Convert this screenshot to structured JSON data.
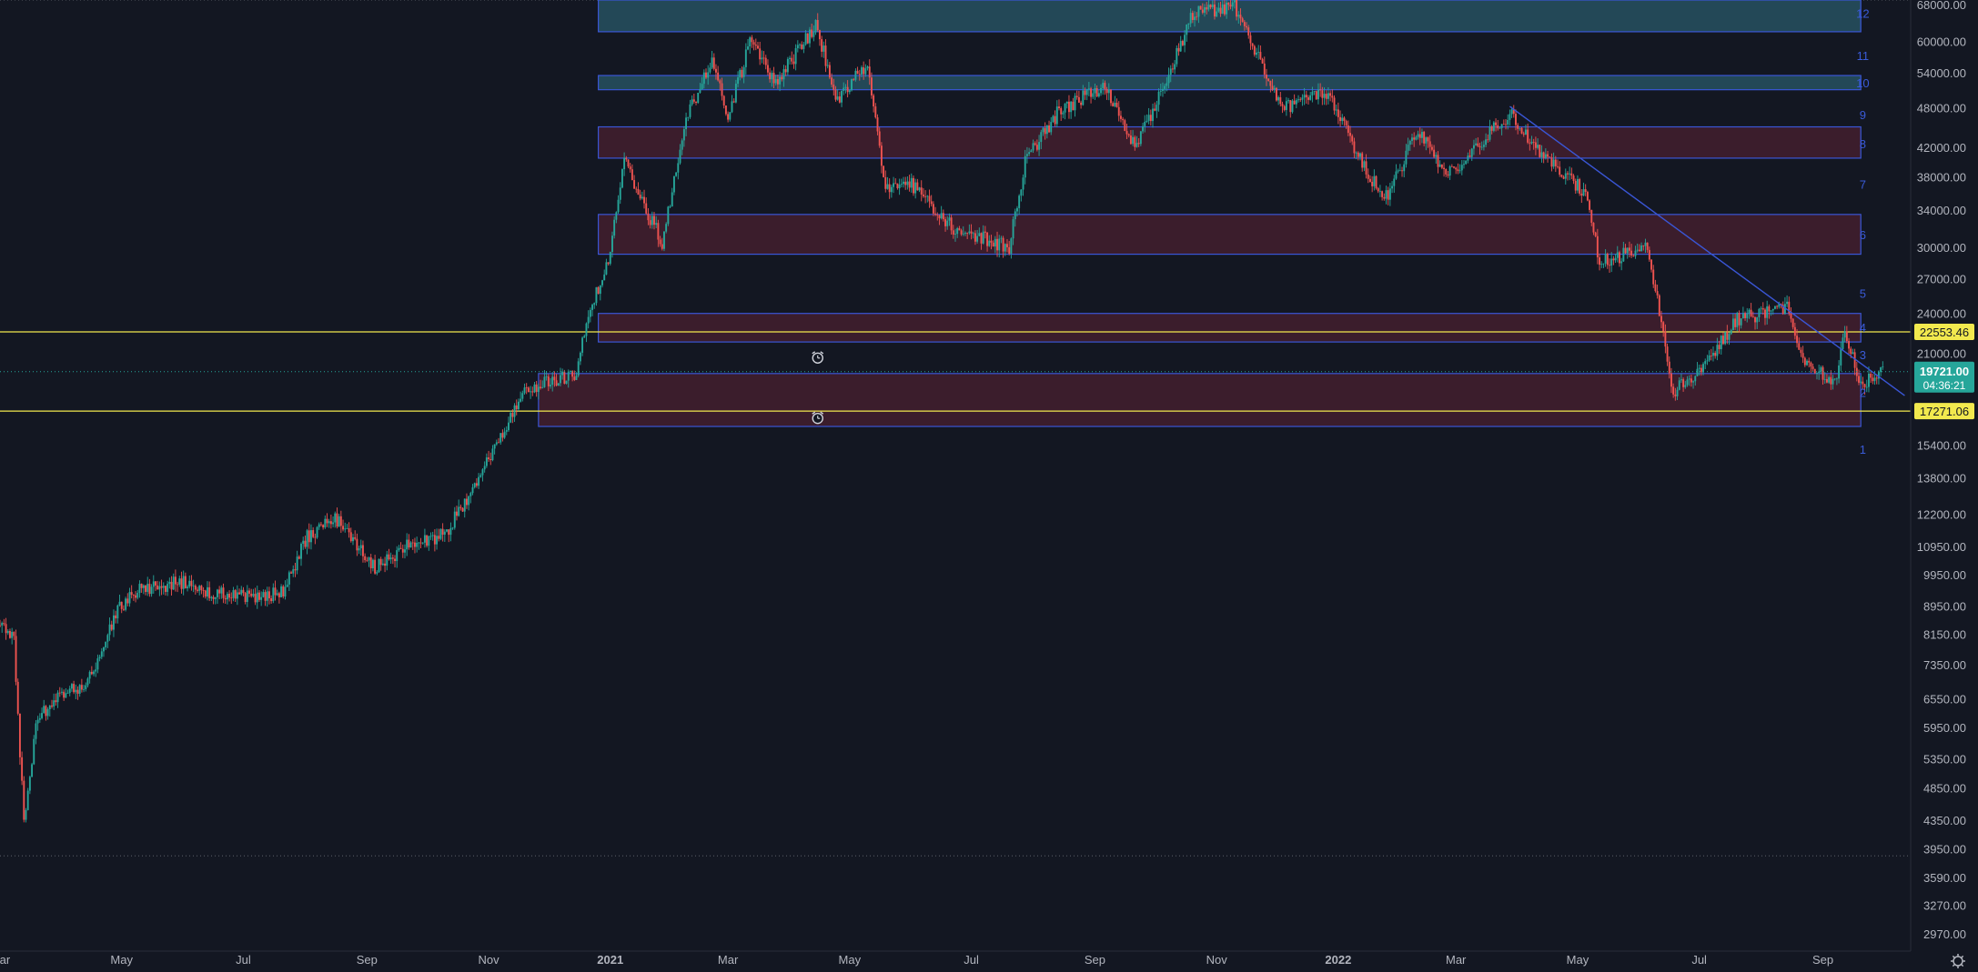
{
  "chart_data": {
    "type": "candlestick",
    "log_scale": true,
    "y_axis_side": "right",
    "ylim": [
      2800,
      69000
    ],
    "xlim": [
      "2020-03-01",
      "2022-10-15"
    ],
    "x_ticks": [
      {
        "date": "2020-03-01",
        "label": "Mar"
      },
      {
        "date": "2020-05-01",
        "label": "May"
      },
      {
        "date": "2020-07-01",
        "label": "Jul"
      },
      {
        "date": "2020-09-01",
        "label": "Sep"
      },
      {
        "date": "2020-11-01",
        "label": "Nov"
      },
      {
        "date": "2021-01-01",
        "label": "2021"
      },
      {
        "date": "2021-03-01",
        "label": "Mar"
      },
      {
        "date": "2021-05-01",
        "label": "May"
      },
      {
        "date": "2021-07-01",
        "label": "Jul"
      },
      {
        "date": "2021-09-01",
        "label": "Sep"
      },
      {
        "date": "2021-11-01",
        "label": "Nov"
      },
      {
        "date": "2022-01-01",
        "label": "2022"
      },
      {
        "date": "2022-03-01",
        "label": "Mar"
      },
      {
        "date": "2022-05-01",
        "label": "May"
      },
      {
        "date": "2022-07-01",
        "label": "Jul"
      },
      {
        "date": "2022-09-01",
        "label": "Sep"
      }
    ],
    "y_ticks": [
      {
        "value": 68000,
        "label": "68000.00"
      },
      {
        "value": 60000,
        "label": "60000.00"
      },
      {
        "value": 54000,
        "label": "54000.00"
      },
      {
        "value": 48000,
        "label": "48000.00"
      },
      {
        "value": 42000,
        "label": "42000.00"
      },
      {
        "value": 38000,
        "label": "38000.00"
      },
      {
        "value": 34000,
        "label": "34000.00"
      },
      {
        "value": 30000,
        "label": "30000.00"
      },
      {
        "value": 27000,
        "label": "27000.00"
      },
      {
        "value": 24000,
        "label": "24000.00"
      },
      {
        "value": 21000,
        "label": "21000.00"
      },
      {
        "value": 15400,
        "label": "15400.00"
      },
      {
        "value": 13800,
        "label": "13800.00"
      },
      {
        "value": 12200,
        "label": "12200.00"
      },
      {
        "value": 10950,
        "label": "10950.00"
      },
      {
        "value": 9950,
        "label": "9950.00"
      },
      {
        "value": 8950,
        "label": "8950.00"
      },
      {
        "value": 8150,
        "label": "8150.00"
      },
      {
        "value": 7350,
        "label": "7350.00"
      },
      {
        "value": 6550,
        "label": "6550.00"
      },
      {
        "value": 5950,
        "label": "5950.00"
      },
      {
        "value": 5350,
        "label": "5350.00"
      },
      {
        "value": 4850,
        "label": "4850.00"
      },
      {
        "value": 4350,
        "label": "4350.00"
      },
      {
        "value": 3950,
        "label": "3950.00"
      },
      {
        "value": 3590,
        "label": "3590.00"
      },
      {
        "value": 3270,
        "label": "3270.00"
      },
      {
        "value": 2970,
        "label": "2970.00"
      }
    ],
    "price_path": [
      [
        "2020-03-01",
        8600
      ],
      [
        "2020-03-08",
        8000
      ],
      [
        "2020-03-13",
        4300
      ],
      [
        "2020-03-20",
        6200
      ],
      [
        "2020-04-01",
        6600
      ],
      [
        "2020-04-15",
        7000
      ],
      [
        "2020-04-29",
        8800
      ],
      [
        "2020-05-10",
        9500
      ],
      [
        "2020-06-01",
        9700
      ],
      [
        "2020-06-20",
        9300
      ],
      [
        "2020-07-10",
        9200
      ],
      [
        "2020-07-22",
        9500
      ],
      [
        "2020-08-02",
        11300
      ],
      [
        "2020-08-17",
        12000
      ],
      [
        "2020-09-05",
        10200
      ],
      [
        "2020-09-20",
        10900
      ],
      [
        "2020-10-10",
        11400
      ],
      [
        "2020-10-21",
        12900
      ],
      [
        "2020-11-05",
        15500
      ],
      [
        "2020-11-20",
        18500
      ],
      [
        "2020-12-01",
        19200
      ],
      [
        "2020-12-14",
        19300
      ],
      [
        "2020-12-20",
        23500
      ],
      [
        "2021-01-01",
        29300
      ],
      [
        "2021-01-08",
        40500
      ],
      [
        "2021-01-15",
        36000
      ],
      [
        "2021-01-27",
        30500
      ],
      [
        "2021-02-08",
        46000
      ],
      [
        "2021-02-21",
        57000
      ],
      [
        "2021-03-01",
        46500
      ],
      [
        "2021-03-13",
        61000
      ],
      [
        "2021-03-25",
        52000
      ],
      [
        "2021-04-14",
        63500
      ],
      [
        "2021-04-25",
        49000
      ],
      [
        "2021-05-10",
        56000
      ],
      [
        "2021-05-19",
        36500
      ],
      [
        "2021-06-01",
        37000
      ],
      [
        "2021-06-22",
        32000
      ],
      [
        "2021-07-20",
        30000
      ],
      [
        "2021-07-28",
        40000
      ],
      [
        "2021-08-14",
        47500
      ],
      [
        "2021-09-06",
        51700
      ],
      [
        "2021-09-21",
        42000
      ],
      [
        "2021-10-01",
        48000
      ],
      [
        "2021-10-20",
        66000
      ],
      [
        "2021-11-10",
        67500
      ],
      [
        "2021-11-26",
        54000
      ],
      [
        "2021-12-04",
        48000
      ],
      [
        "2021-12-27",
        50500
      ],
      [
        "2022-01-10",
        41500
      ],
      [
        "2022-01-24",
        35000
      ],
      [
        "2022-02-10",
        44500
      ],
      [
        "2022-02-24",
        38000
      ],
      [
        "2022-03-28",
        47000
      ],
      [
        "2022-04-15",
        40500
      ],
      [
        "2022-05-05",
        36000
      ],
      [
        "2022-05-12",
        28500
      ],
      [
        "2022-06-05",
        30000
      ],
      [
        "2022-06-18",
        18500
      ],
      [
        "2022-07-01",
        19500
      ],
      [
        "2022-07-20",
        23500
      ],
      [
        "2022-08-14",
        24500
      ],
      [
        "2022-08-20",
        21000
      ],
      [
        "2022-09-07",
        19000
      ],
      [
        "2022-09-12",
        22500
      ],
      [
        "2022-09-20",
        19000
      ],
      [
        "2022-10-01",
        19700
      ]
    ],
    "zones": [
      {
        "label": "12",
        "low": 62000,
        "high": 69000,
        "start": "2020-12-26",
        "end": "2022-09-20",
        "fill": "#2a5a6a"
      },
      {
        "label": "10",
        "low": 51000,
        "high": 53500,
        "start": "2020-12-26",
        "end": "2022-09-20",
        "fill": "#2a5a6a"
      },
      {
        "label": "8",
        "low": 40500,
        "high": 45000,
        "start": "2020-12-26",
        "end": "2022-09-20",
        "fill": "#4a2030"
      },
      {
        "label": "6",
        "low": 29300,
        "high": 33500,
        "start": "2020-12-26",
        "end": "2022-09-20",
        "fill": "#4a2030"
      },
      {
        "label": "4",
        "low": 21800,
        "high": 24000,
        "start": "2020-12-26",
        "end": "2022-09-20",
        "fill": "#4a2030"
      },
      {
        "label": "",
        "low": 16400,
        "high": 19600,
        "start": "2020-11-26",
        "end": "2022-09-20",
        "fill": "#4a2030"
      }
    ],
    "zone_number_labels": [
      {
        "label": "12",
        "value": 66000
      },
      {
        "label": "11",
        "value": 57200
      },
      {
        "label": "10",
        "value": 52200
      },
      {
        "label": "9",
        "value": 46900
      },
      {
        "label": "8",
        "value": 42500
      },
      {
        "label": "7",
        "value": 37100
      },
      {
        "label": "6",
        "value": 31300
      },
      {
        "label": "5",
        "value": 25700
      },
      {
        "label": "4",
        "value": 22900
      },
      {
        "label": "3",
        "value": 20900
      },
      {
        "label": "2",
        "value": 18400
      },
      {
        "label": "1",
        "value": 15200
      }
    ],
    "horizontal_lines": [
      {
        "value": 22553.46,
        "label": "22553.46",
        "color": "#f2e94e"
      },
      {
        "value": 17271.06,
        "label": "17271.06",
        "color": "#f2e94e"
      }
    ],
    "trendline": {
      "start": [
        "2022-03-28",
        48200
      ],
      "end": [
        "2022-10-12",
        18200
      ],
      "color": "#3a56d6"
    },
    "alerts": [
      {
        "date": "2021-04-15",
        "value": 20650
      },
      {
        "date": "2021-04-15",
        "value": 16850
      }
    ],
    "current_price": {
      "value": 19721.0,
      "label": "19721.00",
      "countdown": "04:36:21",
      "color": "#26a69a"
    },
    "dotted_levels": [
      69000,
      3860
    ],
    "colors": {
      "background": "#131722",
      "up": "#26a69a",
      "down": "#ef5350",
      "axis_text": "#b2b5be",
      "zone_border": "#3a56d6",
      "zone_label": "#3a5bd8"
    }
  }
}
